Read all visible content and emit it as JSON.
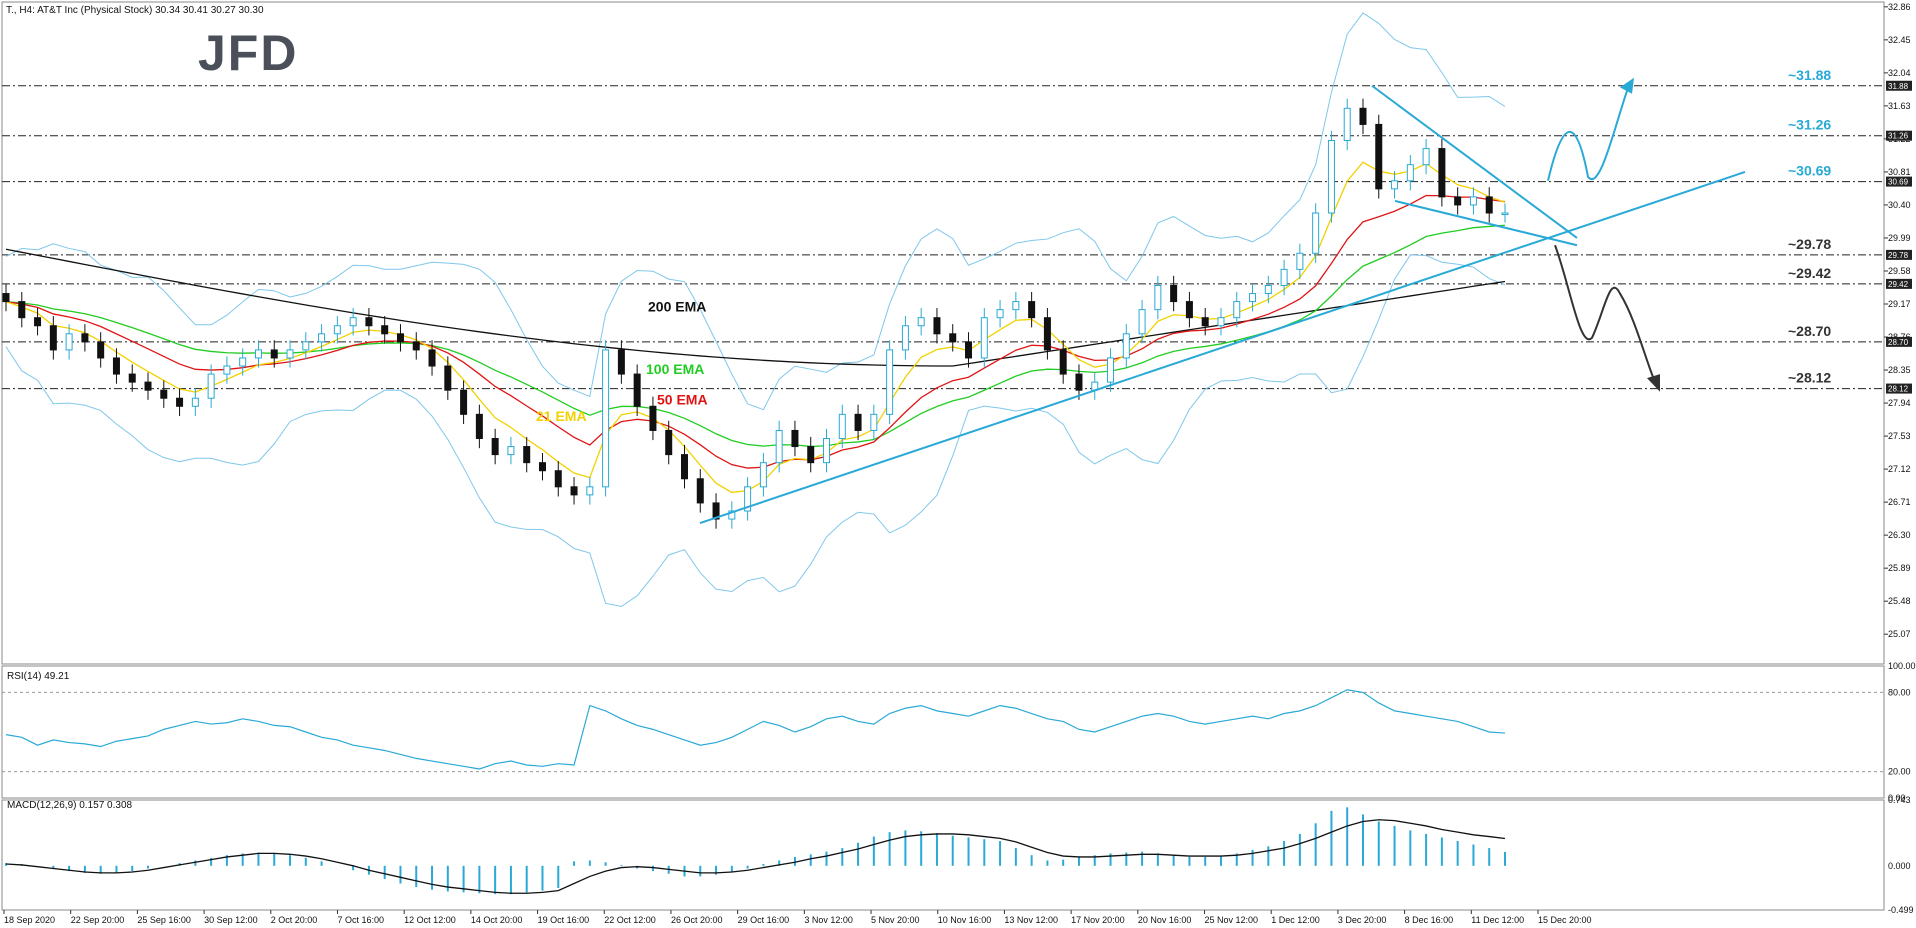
{
  "header": {
    "text": "T., H4:  AT&T Inc (Physical Stock)  30.34 30.41 30.27 30.30"
  },
  "logo": {
    "text": "JFD"
  },
  "chart_data": [
    {
      "type": "candlestick",
      "panel": "price",
      "symbol": "T.",
      "timeframe": "H4",
      "ylim": [
        24.7,
        32.92
      ],
      "yticks": [
        "32.86",
        "32.45",
        "32.04",
        "31.63",
        "31.22",
        "30.81",
        "30.40",
        "29.99",
        "29.58",
        "29.17",
        "28.76",
        "28.35",
        "27.94",
        "27.53",
        "27.12",
        "26.71",
        "26.30",
        "25.89",
        "25.48",
        "25.07"
      ],
      "xticks": [
        "18 Sep 2020",
        "22 Sep 20:00",
        "25 Sep 16:00",
        "30 Sep 12:00",
        "2 Oct 20:00",
        "7 Oct 16:00",
        "12 Oct 12:00",
        "14 Oct 20:00",
        "19 Oct 16:00",
        "22 Oct 12:00",
        "26 Oct 20:00",
        "29 Oct 16:00",
        "3 Nov 12:00",
        "5 Nov 20:00",
        "10 Nov 16:00",
        "13 Nov 12:00",
        "17 Nov 20:00",
        "20 Nov 16:00",
        "25 Nov 12:00",
        "1 Dec 12:00",
        "3 Dec 20:00",
        "8 Dec 16:00",
        "11 Dec 12:00",
        "15 Dec 20:00"
      ],
      "close_path": [
        29.2,
        29.0,
        28.9,
        28.6,
        28.8,
        28.7,
        28.5,
        28.3,
        28.2,
        28.1,
        28.0,
        27.9,
        28.0,
        28.3,
        28.4,
        28.5,
        28.6,
        28.5,
        28.6,
        28.7,
        28.8,
        28.9,
        29.0,
        28.9,
        28.8,
        28.7,
        28.6,
        28.4,
        28.1,
        27.8,
        27.5,
        27.3,
        27.4,
        27.2,
        27.1,
        26.9,
        26.8,
        26.9,
        28.6,
        28.3,
        27.9,
        27.6,
        27.3,
        27.0,
        26.7,
        26.5,
        26.6,
        26.9,
        27.2,
        27.6,
        27.4,
        27.2,
        27.5,
        27.8,
        27.6,
        27.8,
        28.6,
        28.9,
        29.0,
        28.8,
        28.7,
        28.5,
        29.0,
        29.1,
        29.2,
        29.0,
        28.6,
        28.3,
        28.1,
        28.2,
        28.5,
        28.8,
        29.1,
        29.4,
        29.2,
        29.0,
        28.9,
        29.0,
        29.2,
        29.3,
        29.4,
        29.6,
        29.8,
        30.3,
        31.2,
        31.6,
        31.4,
        30.6,
        30.7,
        30.9,
        31.1,
        30.5,
        30.4,
        30.5,
        30.3,
        30.3
      ],
      "key_levels": [
        {
          "label": "~31.88",
          "value": 31.88,
          "color": "#29a9d6"
        },
        {
          "label": "~31.26",
          "value": 31.26,
          "color": "#29a9d6"
        },
        {
          "label": "~30.69",
          "value": 30.69,
          "color": "#29a9d6"
        },
        {
          "label": "~29.78",
          "value": 29.78,
          "color": "#333333"
        },
        {
          "label": "~29.42",
          "value": 29.42,
          "color": "#333333"
        },
        {
          "label": "~28.70",
          "value": 28.7,
          "color": "#333333"
        },
        {
          "label": "~28.12",
          "value": 28.12,
          "color": "#333333"
        }
      ],
      "axis_price_tags": [
        "31.88",
        "31.26",
        "30.69",
        "29.78",
        "29.42",
        "28.70",
        "28.12"
      ],
      "indicators": [
        {
          "name": "200 EMA",
          "color": "#111111"
        },
        {
          "name": "100 EMA",
          "color": "#22cc22"
        },
        {
          "name": "50 EMA",
          "color": "#e01414"
        },
        {
          "name": "21 EMA",
          "color": "#f2d100"
        }
      ],
      "colors": {
        "bull_body": "#ffffff",
        "bear_body": "#111111",
        "trend": "#29a9d6",
        "bollinger": "#7fc7ea",
        "scenario_up": "#29a9d6",
        "scenario_down": "#333333"
      }
    },
    {
      "type": "line",
      "panel": "rsi",
      "label": "RSI(14) 49.21",
      "ylim": [
        0,
        100
      ],
      "yticks": [
        "100.00",
        "80.00",
        "20.00",
        "0.00"
      ],
      "levels": [
        80,
        20
      ],
      "values": [
        48,
        46,
        40,
        44,
        42,
        41,
        39,
        43,
        45,
        47,
        52,
        55,
        58,
        56,
        57,
        60,
        58,
        55,
        54,
        50,
        46,
        44,
        40,
        38,
        36,
        33,
        30,
        28,
        26,
        24,
        22,
        26,
        28,
        25,
        24,
        26,
        25,
        70,
        66,
        60,
        55,
        52,
        48,
        44,
        40,
        42,
        46,
        52,
        58,
        55,
        50,
        54,
        60,
        62,
        58,
        56,
        64,
        68,
        70,
        66,
        64,
        62,
        66,
        70,
        68,
        64,
        60,
        58,
        52,
        50,
        54,
        58,
        62,
        64,
        62,
        58,
        56,
        58,
        60,
        62,
        60,
        64,
        66,
        70,
        76,
        82,
        80,
        72,
        66,
        64,
        62,
        60,
        58,
        54,
        50,
        49.21
      ],
      "color": "#29a9d6"
    },
    {
      "type": "bar_line",
      "panel": "macd",
      "label": "MACD(12,26,9) 0.157 0.308",
      "ylim": [
        -0.499,
        0.743
      ],
      "yticks": [
        "0.743",
        "0.000",
        "-0.499"
      ],
      "histogram": [
        0.03,
        0.02,
        0.0,
        -0.03,
        -0.06,
        -0.08,
        -0.09,
        -0.08,
        -0.06,
        -0.03,
        0.0,
        0.03,
        0.06,
        0.09,
        0.12,
        0.14,
        0.15,
        0.14,
        0.12,
        0.09,
        0.05,
        0.0,
        -0.05,
        -0.1,
        -0.15,
        -0.2,
        -0.24,
        -0.27,
        -0.29,
        -0.3,
        -0.31,
        -0.32,
        -0.32,
        -0.3,
        -0.28,
        -0.25,
        0.05,
        0.06,
        0.04,
        0.01,
        -0.03,
        -0.06,
        -0.09,
        -0.12,
        -0.12,
        -0.1,
        -0.07,
        -0.03,
        0.02,
        0.06,
        0.1,
        0.13,
        0.16,
        0.2,
        0.26,
        0.33,
        0.38,
        0.4,
        0.39,
        0.37,
        0.34,
        0.32,
        0.3,
        0.28,
        0.2,
        0.12,
        0.06,
        0.07,
        0.1,
        0.12,
        0.14,
        0.15,
        0.16,
        0.14,
        0.12,
        0.1,
        0.1,
        0.11,
        0.14,
        0.18,
        0.22,
        0.28,
        0.36,
        0.48,
        0.62,
        0.66,
        0.58,
        0.5,
        0.45,
        0.4,
        0.36,
        0.32,
        0.28,
        0.24,
        0.2,
        0.157
      ],
      "signal": [
        0.02,
        0.01,
        -0.01,
        -0.03,
        -0.05,
        -0.07,
        -0.08,
        -0.08,
        -0.07,
        -0.05,
        -0.02,
        0.01,
        0.04,
        0.07,
        0.1,
        0.12,
        0.14,
        0.14,
        0.13,
        0.11,
        0.08,
        0.04,
        0.0,
        -0.05,
        -0.09,
        -0.13,
        -0.17,
        -0.21,
        -0.24,
        -0.26,
        -0.28,
        -0.3,
        -0.31,
        -0.31,
        -0.3,
        -0.28,
        -0.2,
        -0.12,
        -0.06,
        -0.02,
        -0.01,
        -0.02,
        -0.04,
        -0.06,
        -0.08,
        -0.08,
        -0.07,
        -0.05,
        -0.02,
        0.01,
        0.04,
        0.08,
        0.11,
        0.15,
        0.19,
        0.24,
        0.29,
        0.33,
        0.35,
        0.36,
        0.36,
        0.35,
        0.33,
        0.31,
        0.27,
        0.21,
        0.15,
        0.11,
        0.1,
        0.1,
        0.11,
        0.12,
        0.13,
        0.13,
        0.12,
        0.11,
        0.11,
        0.11,
        0.12,
        0.14,
        0.17,
        0.2,
        0.25,
        0.31,
        0.38,
        0.45,
        0.5,
        0.52,
        0.51,
        0.48,
        0.45,
        0.41,
        0.38,
        0.35,
        0.33,
        0.308
      ],
      "hist_color": "#29a9d6",
      "signal_color": "#111111"
    }
  ]
}
